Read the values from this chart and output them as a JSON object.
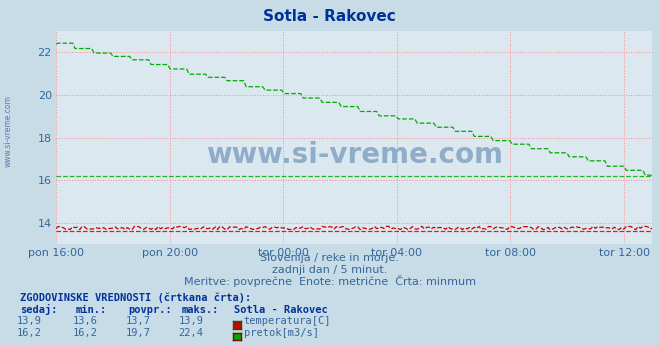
{
  "title": "Sotla - Rakovec",
  "background_color": "#c8dce8",
  "plot_background": "#dce8f0",
  "ylim": [
    13.0,
    23.0
  ],
  "yticks": [
    14,
    16,
    18,
    20,
    22
  ],
  "x_labels": [
    "pon 16:00",
    "pon 20:00",
    "tor 00:00",
    "tor 04:00",
    "tor 08:00",
    "tor 12:00"
  ],
  "x_ticks_pos": [
    0,
    240,
    480,
    720,
    960,
    1200
  ],
  "total_minutes": 1260,
  "temp_min": 13.6,
  "temp_color": "#cc0000",
  "flow_min": 16.2,
  "flow_color": "#00aa00",
  "grid_color": "#ff8888",
  "watermark": "www.si-vreme.com",
  "watermark_color": "#336699",
  "subtitle1": "Slovenija / reke in morje.",
  "subtitle2": "zadnji dan / 5 minut.",
  "subtitle3": "Meritve: povprečne  Enote: metrične  Črta: minmum",
  "legend_title": "ZGODOVINSKE VREDNOSTI (črtkana črta):",
  "legend_headers": [
    "sedaj:",
    "min.:",
    "povpr.:",
    "maks.:",
    "Sotla - Rakovec"
  ],
  "legend_temp_row": [
    "13,9",
    "13,6",
    "13,7",
    "13,9",
    "temperatura[C]"
  ],
  "legend_flow_row": [
    "16,2",
    "16,2",
    "19,7",
    "22,4",
    "pretok[m3/s]"
  ],
  "sidebar_text": "www.si-vreme.com",
  "sidebar_color": "#336699",
  "text_color": "#336699",
  "header_color": "#003399"
}
